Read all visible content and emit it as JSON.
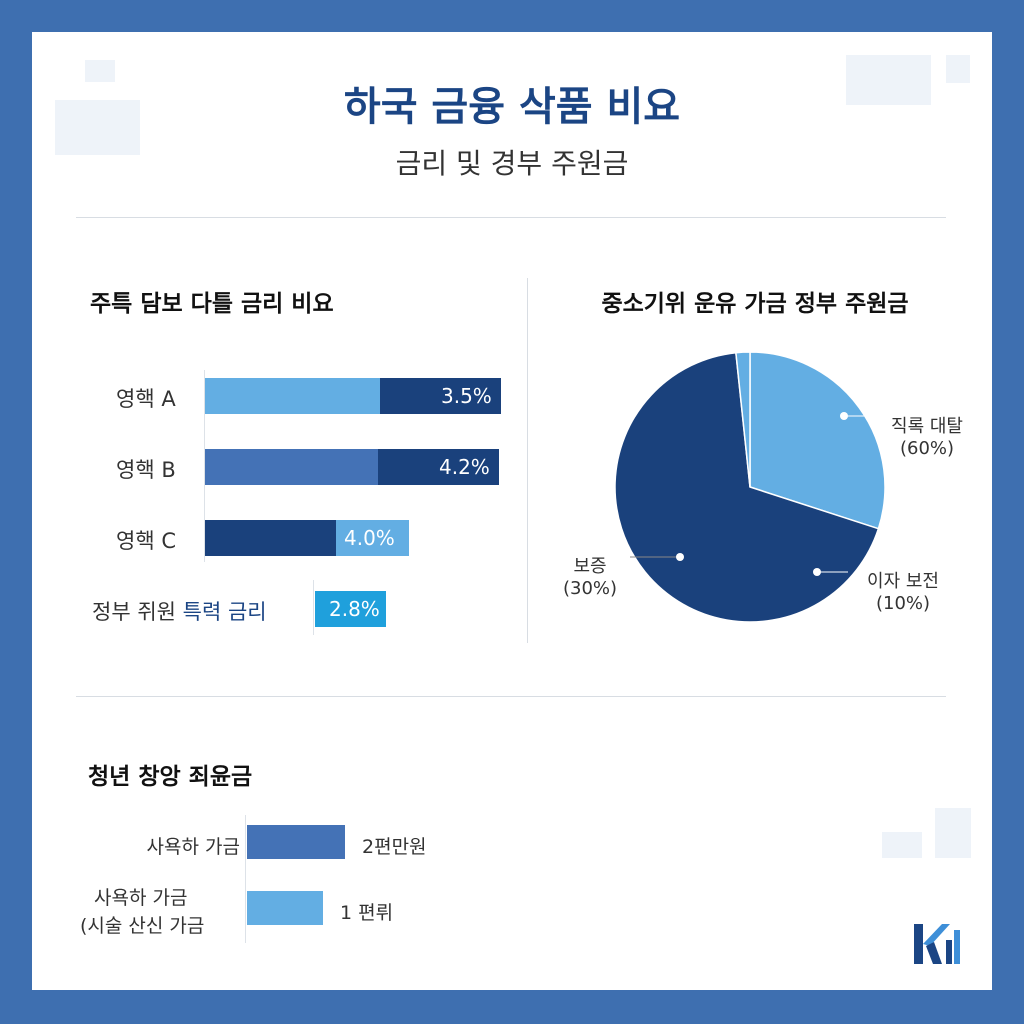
{
  "header": {
    "title": "하국 금융 삭품 비요",
    "subtitle": "금리 및 경부 주원금"
  },
  "mortgage": {
    "title": "주특 담보 다틀 금리 비요",
    "rows": [
      {
        "label": "영핵 A",
        "value": "3.5%",
        "segments": [
          {
            "share": 0.59,
            "color": "#63aee3"
          },
          {
            "share": 0.41,
            "color": "#1a417c"
          }
        ]
      },
      {
        "label": "영핵 B",
        "value": "4.2%",
        "segments": [
          {
            "share": 0.59,
            "color": "#4472b6"
          },
          {
            "share": 0.41,
            "color": "#1a417c"
          }
        ]
      },
      {
        "label": "영핵 C",
        "value": "4.0%",
        "segments": [
          {
            "share": 0.64,
            "color": "#1a417c"
          },
          {
            "share": 0.36,
            "color": "#63aee3"
          }
        ]
      }
    ],
    "gov_label_a": "정부 쥐원",
    "gov_label_b": "특력 금리",
    "gov_value": "2.8%",
    "gov_color": "#1fa0dc"
  },
  "chart_data": {
    "type": "pie",
    "title": "중소기위 운유 가금 정부 주원금",
    "slices": [
      {
        "label": "직록 대탈",
        "pct_label": "(60%)",
        "value": 60,
        "color": "#63aee3"
      },
      {
        "label": "이자 보전",
        "pct_label": "(10%)",
        "value": 10,
        "color": "#1a417c"
      },
      {
        "label": "보증",
        "pct_label": "(30%)",
        "value": 30,
        "color": "#1a417c"
      }
    ]
  },
  "youth": {
    "title": "청년 창앙 죄윤금",
    "rows": [
      {
        "label": "사욕하 가금",
        "value": "2편만원",
        "fraction": 1.0,
        "color": "#4472b6"
      },
      {
        "label_a": "사욕하 가금",
        "label_b": "(시술 산신 가금",
        "value": "1 편뤼",
        "fraction": 0.78,
        "color": "#63aee3"
      }
    ]
  },
  "logo": {
    "text": "K"
  }
}
